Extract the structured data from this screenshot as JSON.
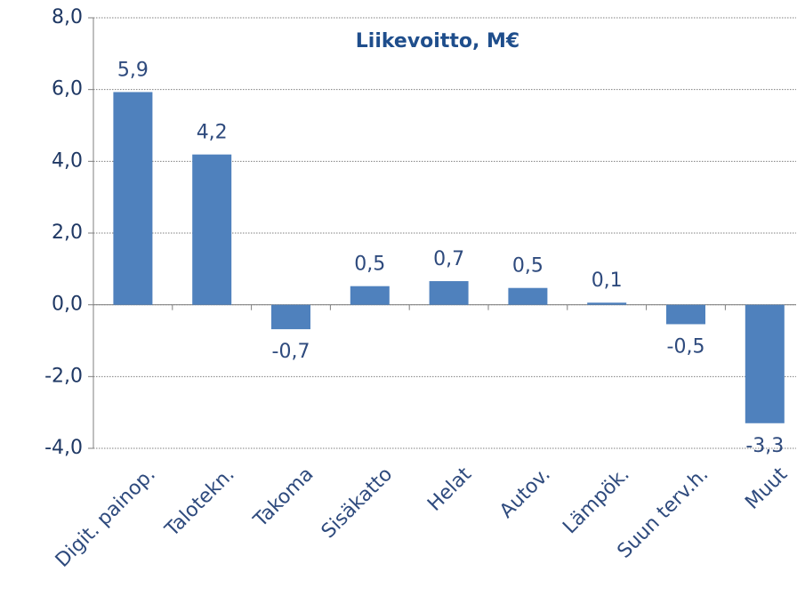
{
  "chart_data": {
    "type": "bar",
    "title": "Liikevoitto, M€",
    "categories": [
      "Digit. painop.",
      "Talotekn.",
      "Takoma",
      "Sisäkatto",
      "Helat",
      "Autov.",
      "Lämpök.",
      "Suun terv.h.",
      "Muut"
    ],
    "values": [
      5.93,
      4.19,
      -0.68,
      0.52,
      0.66,
      0.47,
      0.06,
      -0.54,
      -3.3
    ],
    "value_labels": [
      "5,9",
      "4,2",
      "-0,7",
      "0,5",
      "0,7",
      "0,5",
      "0,1",
      "-0,5",
      "-3,3"
    ],
    "color": "#4f81bd",
    "ylim": [
      -4,
      8
    ],
    "yticks": [
      {
        "value": -4,
        "label": "-4,0"
      },
      {
        "value": -2,
        "label": "-2,0"
      },
      {
        "value": 0,
        "label": "0,0"
      },
      {
        "value": 2,
        "label": "2,0"
      },
      {
        "value": 4,
        "label": "4,0"
      },
      {
        "value": 6,
        "label": "6,0"
      },
      {
        "value": 8,
        "label": "8,0"
      }
    ],
    "grid": true
  }
}
